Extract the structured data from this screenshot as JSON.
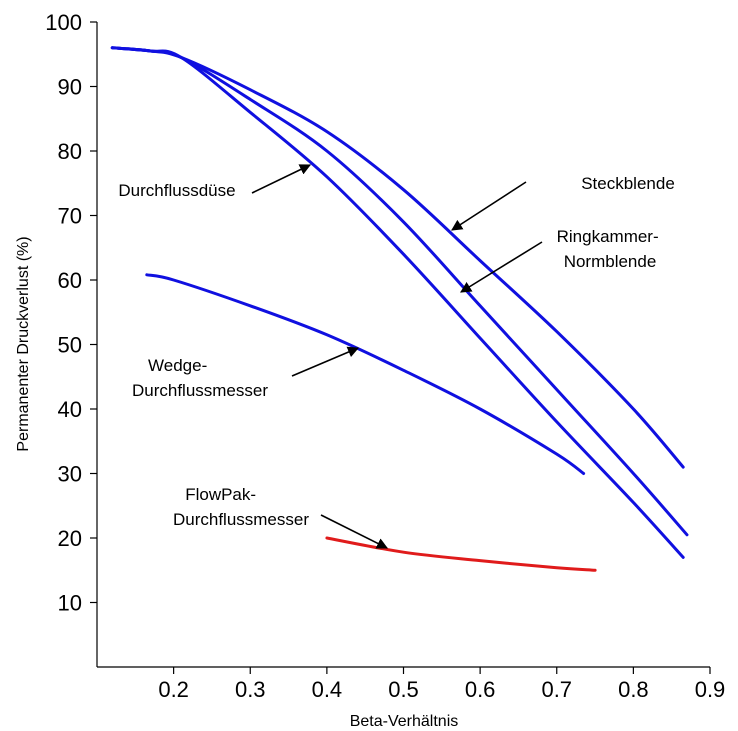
{
  "chart_data": {
    "type": "line",
    "title": "",
    "xlabel": "Beta-Verhältnis",
    "ylabel": "Permanenter Druckverlust (%)",
    "xlim": [
      0.1,
      0.9
    ],
    "ylim": [
      0,
      100
    ],
    "x_ticks": [
      0.2,
      0.3,
      0.4,
      0.5,
      0.6,
      0.7,
      0.8,
      0.9
    ],
    "x_tick_labels": [
      "0.2",
      "0.3",
      "0.4",
      "0.5",
      "0.6",
      "0.7",
      "0.8",
      "0.9"
    ],
    "y_ticks": [
      10,
      20,
      30,
      40,
      50,
      60,
      70,
      80,
      90,
      100
    ],
    "y_tick_labels": [
      "10",
      "20",
      "30",
      "40",
      "50",
      "60",
      "70",
      "80",
      "90",
      "100"
    ],
    "grid": false,
    "legend": "none",
    "series": [
      {
        "label_lines": [
          "Steckblende"
        ],
        "color": "#1010e0",
        "points": [
          [
            0.12,
            96
          ],
          [
            0.17,
            95.5
          ],
          [
            0.21,
            94.5
          ],
          [
            0.3,
            89.5
          ],
          [
            0.4,
            83
          ],
          [
            0.5,
            74
          ],
          [
            0.6,
            63
          ],
          [
            0.7,
            52
          ],
          [
            0.8,
            40
          ],
          [
            0.865,
            31
          ]
        ]
      },
      {
        "label_lines": [
          "Ringkammer-",
          "Normblende"
        ],
        "color": "#1010e0",
        "points": [
          [
            0.12,
            96
          ],
          [
            0.17,
            95.5
          ],
          [
            0.21,
            94.5
          ],
          [
            0.3,
            88
          ],
          [
            0.4,
            80
          ],
          [
            0.5,
            69
          ],
          [
            0.6,
            56
          ],
          [
            0.7,
            43
          ],
          [
            0.8,
            30
          ],
          [
            0.87,
            20.5
          ]
        ]
      },
      {
        "label_lines": [
          "Durchflussdüse"
        ],
        "color": "#1010e0",
        "points": [
          [
            0.12,
            96
          ],
          [
            0.17,
            95.5
          ],
          [
            0.21,
            94.5
          ],
          [
            0.3,
            86
          ],
          [
            0.4,
            76
          ],
          [
            0.5,
            64
          ],
          [
            0.6,
            51
          ],
          [
            0.7,
            38
          ],
          [
            0.8,
            25.5
          ],
          [
            0.865,
            17
          ]
        ]
      },
      {
        "label_lines": [
          "Wedge-",
          "Durchflussmesser"
        ],
        "color": "#1010e0",
        "points": [
          [
            0.165,
            60.8
          ],
          [
            0.2,
            60
          ],
          [
            0.3,
            56
          ],
          [
            0.4,
            51.5
          ],
          [
            0.5,
            46
          ],
          [
            0.6,
            40
          ],
          [
            0.7,
            33
          ],
          [
            0.735,
            30
          ]
        ]
      },
      {
        "label_lines": [
          "FlowPak-",
          "Durchflussmesser"
        ],
        "color": "#e01b1b",
        "points": [
          [
            0.4,
            20
          ],
          [
            0.5,
            17.8
          ],
          [
            0.6,
            16.5
          ],
          [
            0.7,
            15.4
          ],
          [
            0.75,
            15
          ]
        ]
      }
    ],
    "annotations": [
      {
        "text_lines": [
          "Steckblende"
        ]
      },
      {
        "text_lines": [
          "Ringkammer-",
          "Normblende"
        ]
      },
      {
        "text_lines": [
          "Durchflussdüse"
        ]
      },
      {
        "text_lines": [
          "Wedge-",
          "Durchflussmesser"
        ]
      },
      {
        "text_lines": [
          "FlowPak-",
          "Durchflussmesser"
        ]
      }
    ]
  }
}
